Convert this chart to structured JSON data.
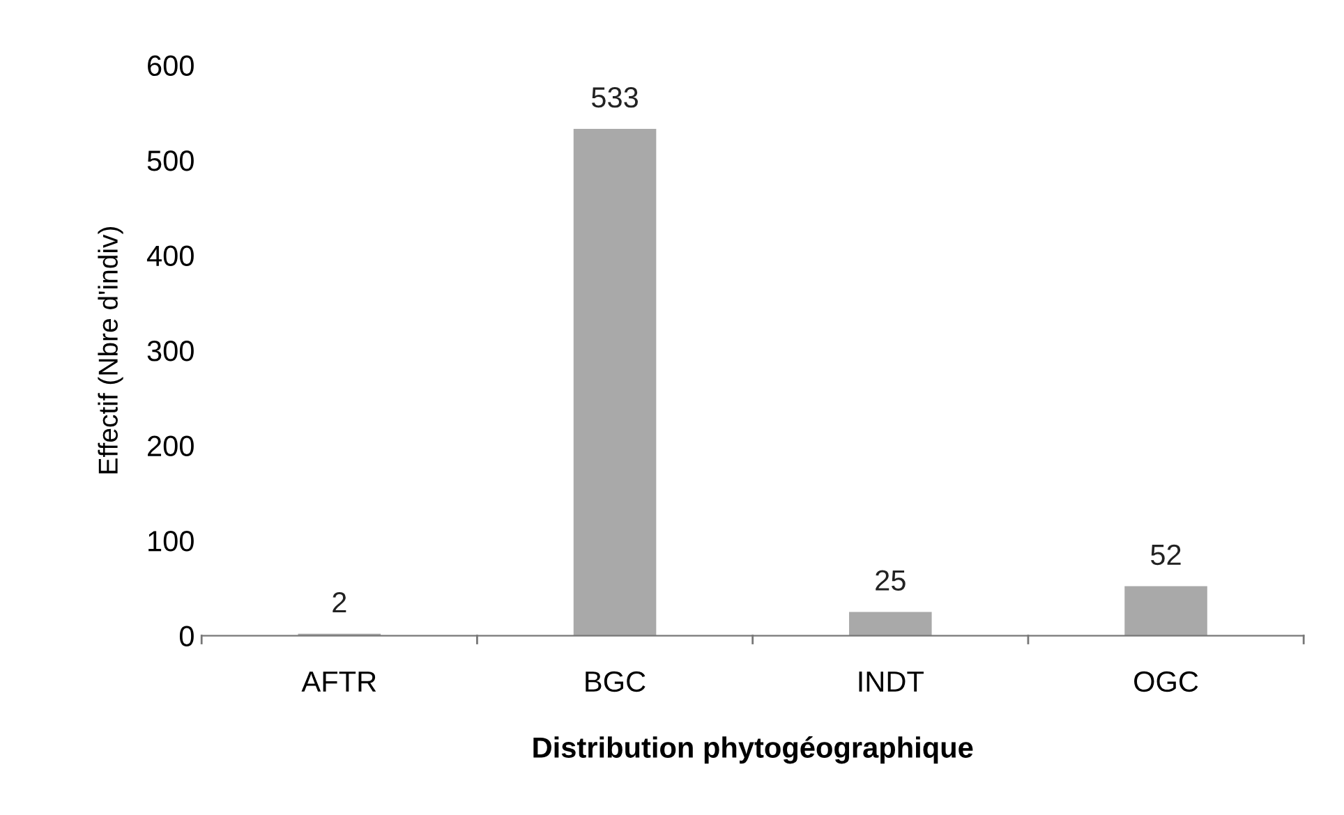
{
  "chart_data": {
    "type": "bar",
    "xlabel": "Distribution phytogéographique",
    "ylabel": "Effectif (Nbre d'indiv)",
    "categories": [
      "AFTR",
      "BGC",
      "INDT",
      "OGC"
    ],
    "values": [
      2,
      533,
      25,
      52
    ],
    "color": "#a9a9a9",
    "ylim": [
      0,
      600
    ],
    "yticks": [
      0,
      100,
      200,
      300,
      400,
      500,
      600
    ],
    "data_labels": true,
    "grid": false,
    "legend": false
  }
}
